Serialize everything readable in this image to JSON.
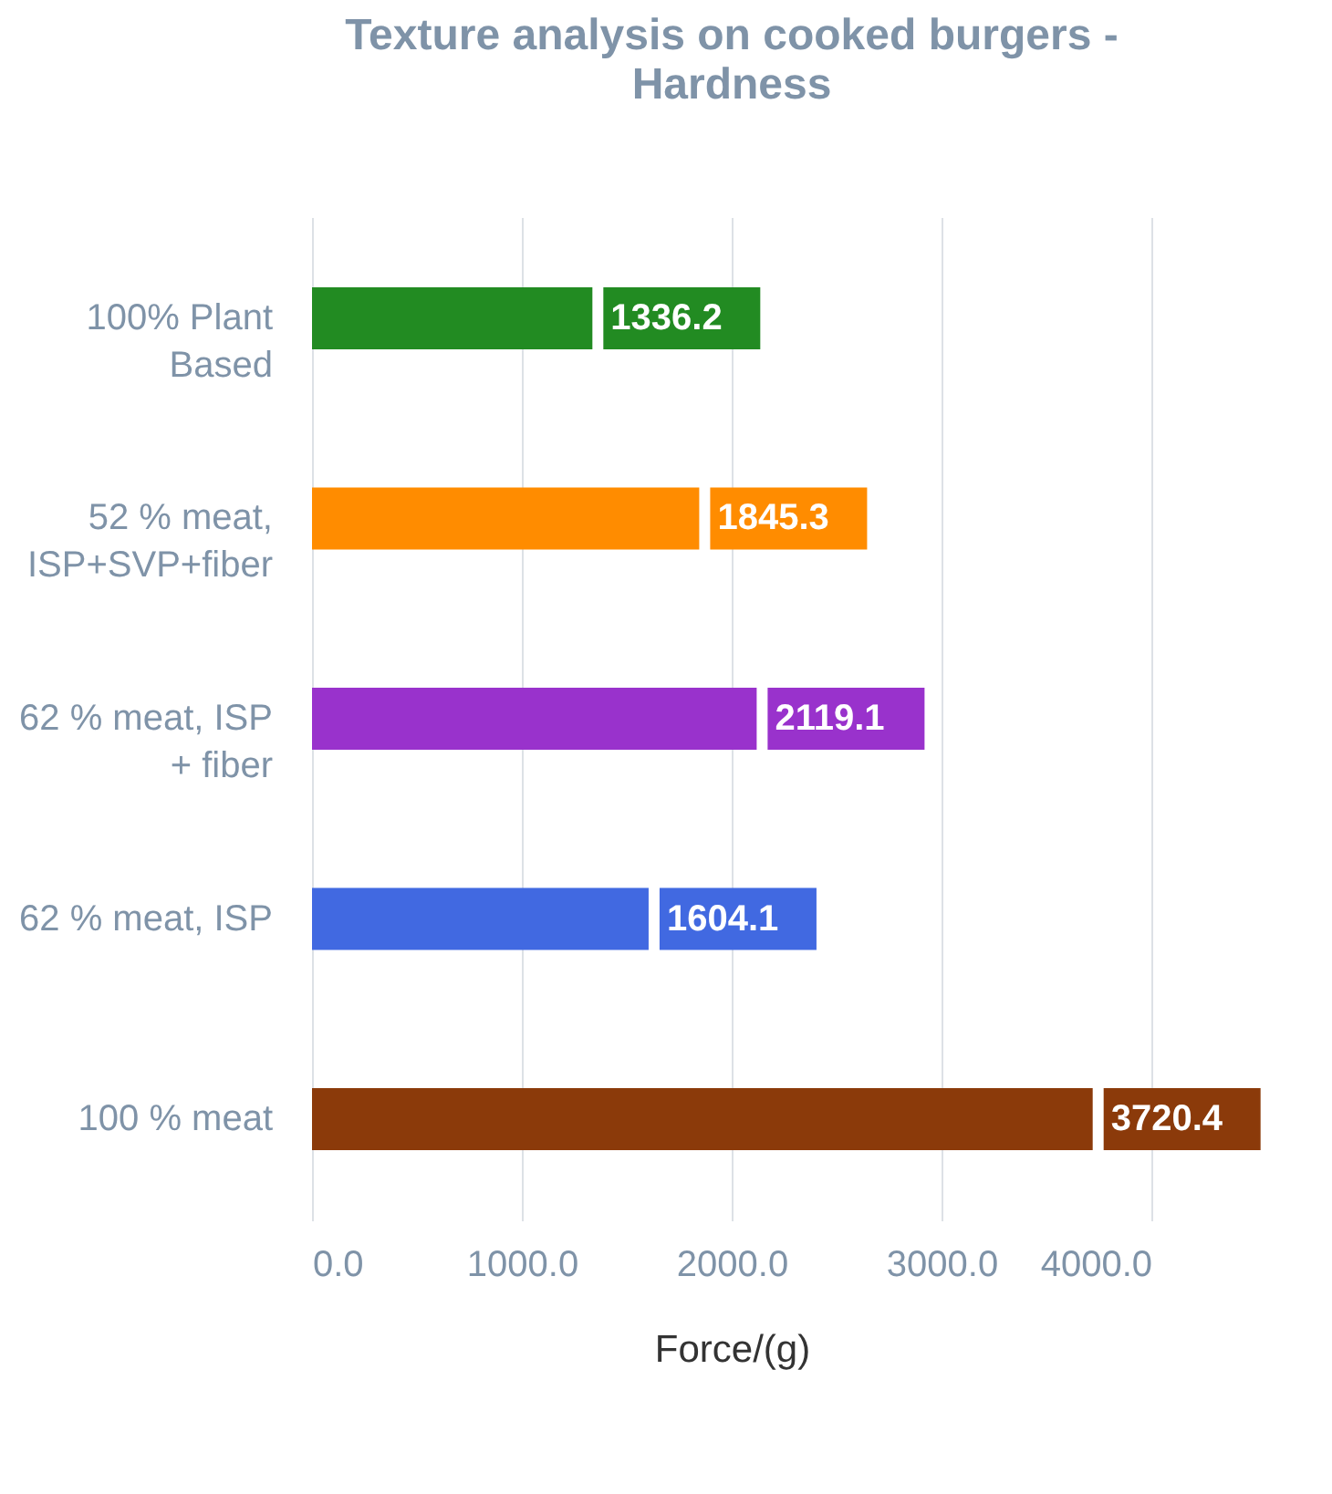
{
  "chart_data": {
    "type": "bar",
    "orientation": "horizontal",
    "title": "Texture analysis on cooked burgers - Hardness",
    "xlabel": "Force/(g)",
    "categories": [
      "100% Plant Based",
      "52 % meat, ISP+SVP+fiber",
      "62 % meat, ISP + fiber",
      "62 % meat, ISP",
      "100 % meat"
    ],
    "values": [
      1336.2,
      1845.3,
      2119.1,
      1604.1,
      3720.4
    ],
    "colors": [
      "#228b22",
      "#ff8c00",
      "#9932cc",
      "#4169e1",
      "#8b3a0a"
    ],
    "xlim": [
      0,
      4000
    ],
    "xticks": [
      {
        "value": 0,
        "label": "0.0"
      },
      {
        "value": 1000,
        "label": "1000.0"
      },
      {
        "value": 2000,
        "label": "2000.0"
      },
      {
        "value": 3000,
        "label": "3000.0"
      },
      {
        "value": 4000,
        "label": "4000.0"
      }
    ],
    "grid": "x",
    "data_labels": true
  }
}
